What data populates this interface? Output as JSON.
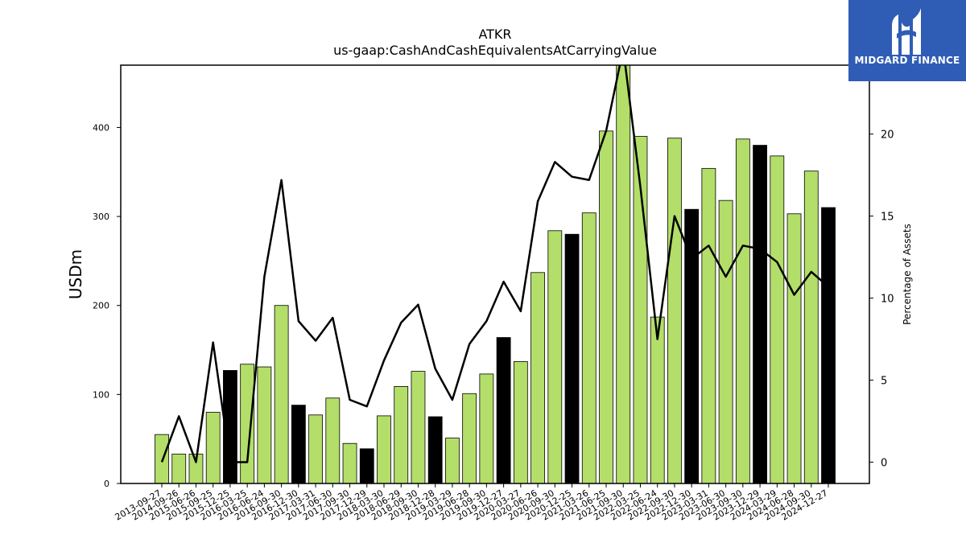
{
  "chart_data": {
    "type": "bar",
    "title": "ATKR",
    "subtitle": "us-gaap:CashAndCashEquivalentsAtCarryingValue",
    "ylabel": "USDm",
    "y2label": "Percentage of Assets",
    "ylim": [
      0,
      470
    ],
    "y2lim": [
      -1.3,
      24.2
    ],
    "yticks": [
      0,
      100,
      200,
      300,
      400
    ],
    "y2ticks": [
      0,
      5,
      10,
      15,
      20
    ],
    "grid": false,
    "colors": {
      "bar_default": "#b3de69",
      "bar_highlight": "#000000",
      "line": "#000000",
      "edge": "#000000"
    },
    "categories": [
      "2013-09-27",
      "2014-09-26",
      "2015-06-26",
      "2015-09-25",
      "2015-12-25",
      "2016-03-25",
      "2016-06-24",
      "2016-09-30",
      "2016-12-30",
      "2017-03-31",
      "2017-06-30",
      "2017-09-30",
      "2017-12-29",
      "2018-03-30",
      "2018-06-29",
      "2018-09-30",
      "2018-12-28",
      "2019-03-29",
      "2019-06-28",
      "2019-09-30",
      "2019-12-27",
      "2020-03-27",
      "2020-06-26",
      "2020-09-30",
      "2020-12-25",
      "2021-03-26",
      "2021-06-25",
      "2021-09-30",
      "2022-03-25",
      "2022-06-24",
      "2022-09-30",
      "2022-12-30",
      "2023-03-31",
      "2023-06-30",
      "2023-09-30",
      "2023-12-29",
      "2024-03-29",
      "2024-06-28",
      "2024-09-30",
      "2024-12-27"
    ],
    "series": [
      {
        "type": "bar",
        "values": [
          55,
          33,
          33,
          80,
          127,
          134,
          131,
          200,
          88,
          77,
          96,
          45,
          39,
          76,
          109,
          126,
          75,
          51,
          101,
          123,
          164,
          137,
          237,
          284,
          280,
          304,
          396,
          470,
          390,
          187,
          388,
          308,
          354,
          318,
          387,
          380,
          368,
          303,
          351,
          310
        ],
        "highlight": [
          false,
          false,
          false,
          false,
          true,
          false,
          false,
          false,
          true,
          false,
          false,
          false,
          true,
          false,
          false,
          false,
          true,
          false,
          false,
          false,
          true,
          false,
          false,
          false,
          true,
          false,
          false,
          false,
          false,
          false,
          false,
          true,
          false,
          false,
          false,
          true,
          false,
          false,
          false,
          true
        ]
      },
      {
        "type": "line",
        "axis": "right",
        "values": [
          0,
          2.8,
          0,
          7.3,
          0,
          0,
          11.3,
          17.2,
          8.6,
          7.4,
          8.8,
          3.8,
          3.4,
          6.2,
          8.5,
          9.6,
          5.7,
          3.8,
          7.2,
          8.6,
          11,
          9.2,
          15.9,
          18.3,
          17.4,
          17.2,
          20.2,
          25.2,
          16.8,
          7.5,
          15,
          12.4,
          13.2,
          11.3,
          13.2,
          13,
          12.2,
          10.2,
          11.6,
          10.7
        ]
      }
    ]
  },
  "logo": {
    "text": "MIDGARD FINANCE"
  }
}
